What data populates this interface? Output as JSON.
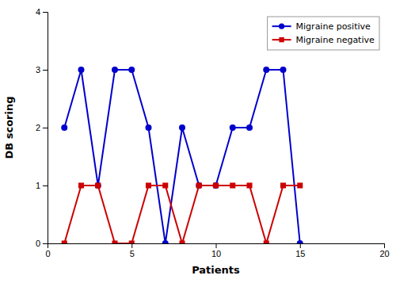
{
  "chart_data": {
    "type": "line",
    "xlabel": "Patients",
    "ylabel": "DB scoring",
    "x": [
      1,
      2,
      3,
      4,
      5,
      6,
      7,
      8,
      9,
      10,
      11,
      12,
      13,
      14,
      15
    ],
    "series": [
      {
        "name": "Migraine positive",
        "color": "#0000cc",
        "marker": "circle",
        "values": [
          2,
          3,
          1,
          3,
          3,
          2,
          0,
          2,
          1,
          1,
          2,
          2,
          3,
          3,
          0
        ]
      },
      {
        "name": "Migraine negative",
        "color": "#cc0000",
        "marker": "square",
        "values": [
          0,
          1,
          1,
          0,
          0,
          1,
          1,
          0,
          1,
          1,
          1,
          1,
          0,
          1,
          1
        ]
      }
    ],
    "xlim": [
      0,
      20
    ],
    "ylim": [
      0,
      4
    ],
    "xticks": [
      0,
      5,
      10,
      15,
      20
    ],
    "yticks": [
      0,
      1,
      2,
      3,
      4
    ],
    "grid": false,
    "legend": "upper right"
  }
}
